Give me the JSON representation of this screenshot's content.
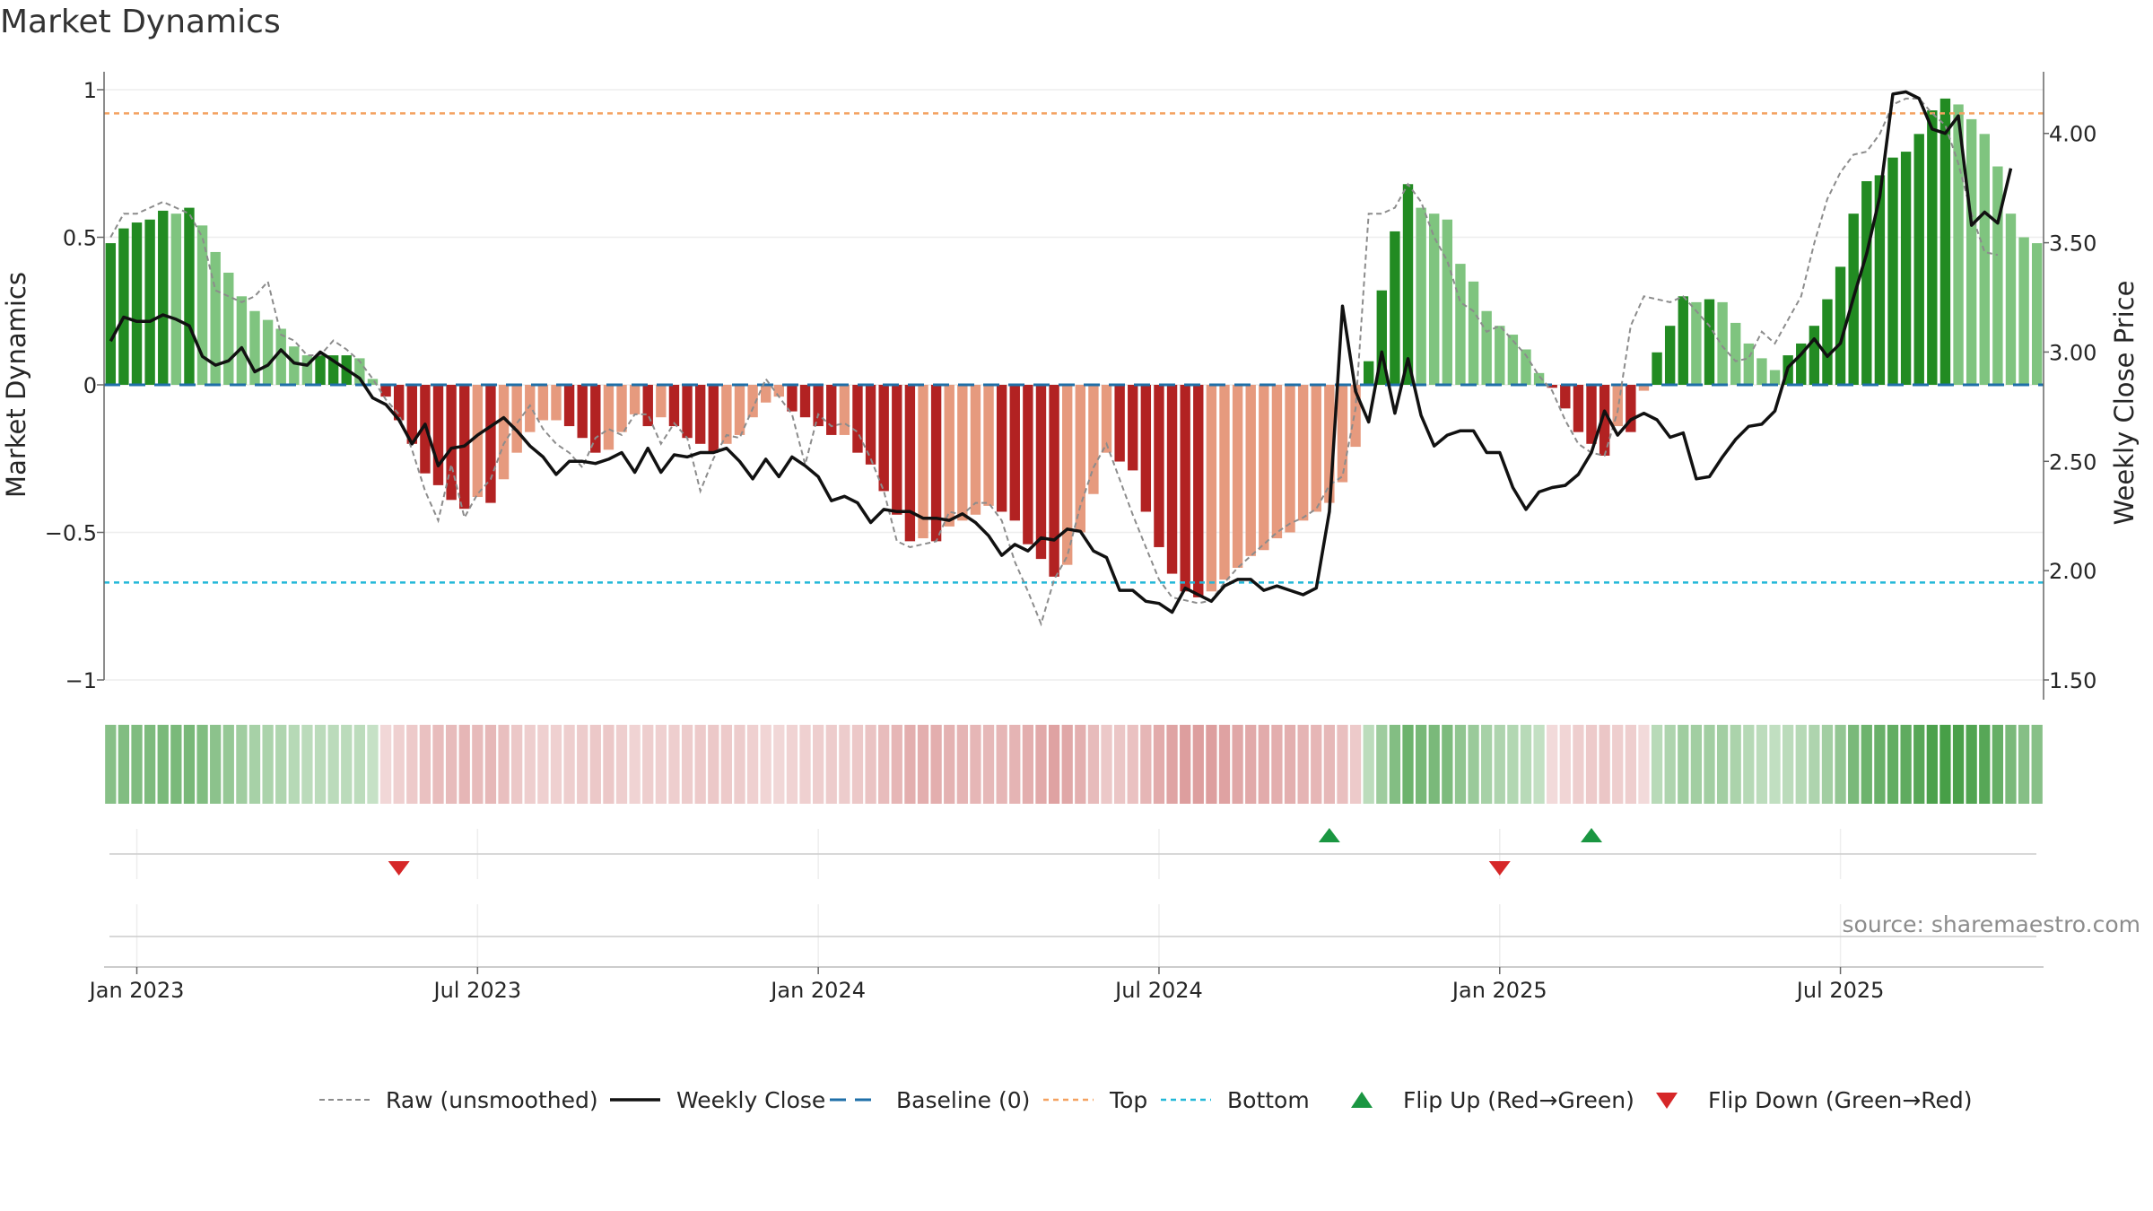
{
  "chart_data": {
    "type": "bar",
    "title": "Market Dynamics",
    "source": "source: sharemaestro.com",
    "ylabel": "Market Dynamics",
    "y2label": "Weekly Close Price",
    "ylim": [
      -1,
      1
    ],
    "y2lim": [
      1.5,
      4.2
    ],
    "yticks": [
      {
        "v": 1,
        "label": "1"
      },
      {
        "v": 0.5,
        "label": "0.5"
      },
      {
        "v": 0,
        "label": "0"
      },
      {
        "v": -0.5,
        "label": "−0.5"
      },
      {
        "v": -1,
        "label": "−1"
      }
    ],
    "y2ticks": [
      {
        "v": 4.0,
        "label": "4.00"
      },
      {
        "v": 3.5,
        "label": "3.50"
      },
      {
        "v": 3.0,
        "label": "3.00"
      },
      {
        "v": 2.5,
        "label": "2.50"
      },
      {
        "v": 2.0,
        "label": "2.00"
      },
      {
        "v": 1.5,
        "label": "1.50"
      }
    ],
    "xticks": [
      {
        "w": 2,
        "label": "Jan 2023"
      },
      {
        "w": 28,
        "label": "Jul 2023"
      },
      {
        "w": 54,
        "label": "Jan 2024"
      },
      {
        "w": 80,
        "label": "Jul 2024"
      },
      {
        "w": 106,
        "label": "Jan 2025"
      },
      {
        "w": 132,
        "label": "Jul 2025"
      }
    ],
    "first_week": "2022-12-19",
    "top_level": 0.92,
    "bottom_level": -0.67,
    "dynamics": [
      0.48,
      0.53,
      0.55,
      0.56,
      0.59,
      0.58,
      0.6,
      0.54,
      0.45,
      0.38,
      0.3,
      0.25,
      0.22,
      0.19,
      0.13,
      0.1,
      0.1,
      0.1,
      0.1,
      0.09,
      0.02,
      -0.04,
      -0.12,
      -0.2,
      -0.3,
      -0.34,
      -0.39,
      -0.42,
      -0.38,
      -0.4,
      -0.32,
      -0.23,
      -0.16,
      -0.12,
      -0.12,
      -0.14,
      -0.18,
      -0.23,
      -0.22,
      -0.16,
      -0.1,
      -0.14,
      -0.11,
      -0.14,
      -0.18,
      -0.2,
      -0.23,
      -0.2,
      -0.17,
      -0.11,
      -0.06,
      -0.04,
      -0.09,
      -0.11,
      -0.14,
      -0.17,
      -0.17,
      -0.23,
      -0.27,
      -0.36,
      -0.44,
      -0.53,
      -0.52,
      -0.53,
      -0.48,
      -0.46,
      -0.44,
      -0.41,
      -0.43,
      -0.46,
      -0.54,
      -0.59,
      -0.65,
      -0.61,
      -0.5,
      -0.37,
      -0.23,
      -0.26,
      -0.29,
      -0.43,
      -0.55,
      -0.64,
      -0.7,
      -0.72,
      -0.7,
      -0.66,
      -0.62,
      -0.58,
      -0.56,
      -0.52,
      -0.5,
      -0.46,
      -0.43,
      -0.4,
      -0.33,
      -0.21,
      0.08,
      0.32,
      0.52,
      0.68,
      0.6,
      0.58,
      0.56,
      0.41,
      0.35,
      0.25,
      0.2,
      0.17,
      0.12,
      0.04,
      -0.01,
      -0.08,
      -0.16,
      -0.2,
      -0.24,
      -0.14,
      -0.16,
      -0.02,
      0.11,
      0.2,
      0.3,
      0.28,
      0.29,
      0.28,
      0.21,
      0.14,
      0.09,
      0.05,
      0.1,
      0.14,
      0.2,
      0.29,
      0.4,
      0.58,
      0.69,
      0.71,
      0.77,
      0.79,
      0.85,
      0.93,
      0.97,
      0.95,
      0.9,
      0.85,
      0.74,
      0.58,
      0.5,
      0.48
    ],
    "raw": [
      0.5,
      0.58,
      0.58,
      0.6,
      0.62,
      0.6,
      0.58,
      0.5,
      0.32,
      0.3,
      0.28,
      0.3,
      0.35,
      0.17,
      0.15,
      0.1,
      0.1,
      0.15,
      0.12,
      0.08,
      0.02,
      -0.05,
      -0.1,
      -0.22,
      -0.36,
      -0.46,
      -0.27,
      -0.45,
      -0.37,
      -0.32,
      -0.2,
      -0.13,
      -0.07,
      -0.15,
      -0.2,
      -0.23,
      -0.28,
      -0.18,
      -0.15,
      -0.17,
      -0.1,
      -0.1,
      -0.2,
      -0.13,
      -0.18,
      -0.36,
      -0.25,
      -0.17,
      -0.18,
      -0.08,
      0.02,
      -0.04,
      -0.1,
      -0.27,
      -0.1,
      -0.14,
      -0.13,
      -0.16,
      -0.25,
      -0.36,
      -0.53,
      -0.55,
      -0.54,
      -0.53,
      -0.43,
      -0.44,
      -0.4,
      -0.4,
      -0.46,
      -0.6,
      -0.7,
      -0.81,
      -0.66,
      -0.58,
      -0.41,
      -0.28,
      -0.2,
      -0.32,
      -0.44,
      -0.55,
      -0.66,
      -0.72,
      -0.73,
      -0.74,
      -0.73,
      -0.67,
      -0.62,
      -0.58,
      -0.54,
      -0.5,
      -0.47,
      -0.45,
      -0.42,
      -0.34,
      -0.31,
      -0.08,
      0.58,
      0.58,
      0.6,
      0.68,
      0.62,
      0.5,
      0.42,
      0.28,
      0.25,
      0.18,
      0.2,
      0.15,
      0.1,
      0.03,
      -0.02,
      -0.12,
      -0.2,
      -0.23,
      -0.24,
      -0.09,
      0.2,
      0.3,
      0.29,
      0.28,
      0.3,
      0.25,
      0.2,
      0.13,
      0.08,
      0.09,
      0.18,
      0.14,
      0.22,
      0.3,
      0.48,
      0.63,
      0.72,
      0.78,
      0.79,
      0.85,
      0.95,
      0.97,
      0.97,
      0.92,
      0.88,
      0.75,
      0.58,
      0.45,
      0.44
    ],
    "close": [
      3.05,
      3.16,
      3.14,
      3.14,
      3.17,
      3.15,
      3.12,
      2.98,
      2.94,
      2.96,
      3.02,
      2.91,
      2.94,
      3.01,
      2.95,
      2.94,
      3.0,
      2.96,
      2.92,
      2.88,
      2.79,
      2.76,
      2.69,
      2.58,
      2.67,
      2.48,
      2.56,
      2.57,
      2.62,
      2.66,
      2.7,
      2.64,
      2.57,
      2.52,
      2.44,
      2.5,
      2.5,
      2.49,
      2.51,
      2.54,
      2.45,
      2.56,
      2.45,
      2.53,
      2.52,
      2.54,
      2.54,
      2.56,
      2.5,
      2.42,
      2.51,
      2.43,
      2.52,
      2.48,
      2.43,
      2.32,
      2.34,
      2.31,
      2.22,
      2.28,
      2.27,
      2.27,
      2.24,
      2.24,
      2.23,
      2.26,
      2.22,
      2.16,
      2.07,
      2.12,
      2.09,
      2.15,
      2.14,
      2.19,
      2.18,
      2.09,
      2.06,
      1.91,
      1.91,
      1.86,
      1.85,
      1.81,
      1.92,
      1.89,
      1.86,
      1.93,
      1.96,
      1.96,
      1.91,
      1.93,
      1.91,
      1.89,
      1.92,
      2.27,
      3.21,
      2.82,
      2.68,
      3.0,
      2.72,
      2.97,
      2.71,
      2.57,
      2.62,
      2.64,
      2.64,
      2.54,
      2.54,
      2.38,
      2.28,
      2.36,
      2.38,
      2.39,
      2.44,
      2.54,
      2.73,
      2.62,
      2.69,
      2.72,
      2.69,
      2.61,
      2.63,
      2.42,
      2.43,
      2.52,
      2.6,
      2.66,
      2.67,
      2.73,
      2.93,
      2.99,
      3.06,
      2.98,
      3.04,
      3.25,
      3.45,
      3.71,
      4.18,
      4.19,
      4.16,
      4.02,
      4.0,
      4.08,
      3.58,
      3.64,
      3.59,
      3.84
    ],
    "flip_up_weeks": [
      93,
      113
    ],
    "flip_down_weeks": [
      22,
      106
    ],
    "colors": {
      "strong_green": "#228b22",
      "light_green": "#7fc47f",
      "strong_red": "#b22222",
      "light_red": "#e69a7e",
      "close_line": "#111111",
      "raw_line": "#8c8c8c",
      "baseline": "#1f6fa8",
      "top": "#f4a261",
      "bottom": "#22b8d8",
      "flip_up": "#1a9641",
      "flip_down": "#d62728"
    },
    "legend": {
      "position": "bottom-center",
      "items": [
        {
          "key": "raw",
          "label": "Raw (unsmoothed)"
        },
        {
          "key": "close",
          "label": "Weekly Close"
        },
        {
          "key": "baseline",
          "label": "Baseline (0)"
        },
        {
          "key": "top",
          "label": "Top"
        },
        {
          "key": "bottom",
          "label": "Bottom"
        },
        {
          "key": "flipup",
          "label": "Flip Up (Red→Green)"
        },
        {
          "key": "flipdown",
          "label": "Flip Down (Green→Red)"
        }
      ]
    }
  }
}
